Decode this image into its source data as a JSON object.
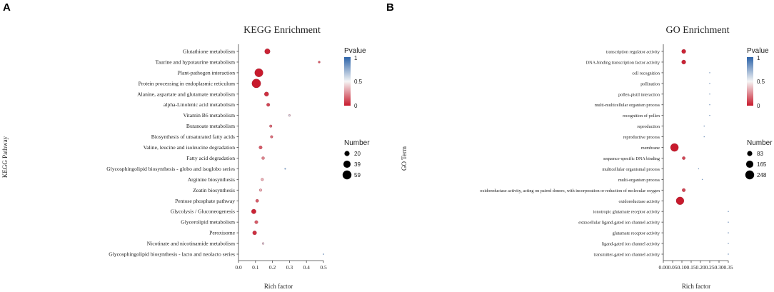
{
  "panels": {
    "A": {
      "letter": "A"
    },
    "B": {
      "letter": "B"
    }
  },
  "colors": {
    "low": "#c81a2d",
    "mid": "#f5f5f5",
    "high": "#2c63a9",
    "dot_stroke": "#8a1020"
  },
  "chart_data": [
    {
      "type": "scatter",
      "title": "KEGG Enrichment",
      "xlabel": "Rich factor",
      "ylabel": "KEGG Pathway",
      "xlim": [
        0,
        0.5
      ],
      "xticks": [
        "0.0",
        "0.1",
        "0.2",
        "0.3",
        "0.4",
        "0.5"
      ],
      "xtick_values": [
        0.0,
        0.1,
        0.2,
        0.3,
        0.4,
        0.5
      ],
      "color_legend": {
        "title": "Pvalue",
        "ticks": [
          "1",
          "0.5",
          "0"
        ],
        "tick_values": [
          1,
          0.5,
          0
        ]
      },
      "size_legend": {
        "title": "Number",
        "labels": [
          "20",
          "39",
          "59"
        ],
        "values": [
          20,
          39,
          59
        ]
      },
      "categories": [
        "Glutathione metabolism",
        "Taurine and hypotaurine metabolism",
        "Plant-pathogen interaction",
        "Protein processing in endoplasmic reticulum",
        "Alanine, aspartate and glutamate metabolism",
        "alpha-Linolenic acid metabolism",
        "Vitamin B6 metabolism",
        "Butanoate metabolism",
        "Biosynthesis of unsaturated fatty acids",
        "Valine, leucine and isoleucine degradation",
        "Fatty acid degradation",
        "Glycosphingolipid biosynthesis - globo and isoglobo series",
        "Arginine biosynthesis",
        "Zeatin biosynthesis",
        "Pentose phosphate pathway",
        "Glycolysis / Gluconeogenesis",
        "Glycerolipid metabolism",
        "Peroxisome",
        "Nicotinate and nicotinamide metabolism",
        "Glycosphingolipid biosynthesis - lacto and neolacto series"
      ],
      "points": [
        {
          "x": 0.17,
          "number": 22,
          "pvalue": 0.02
        },
        {
          "x": 0.475,
          "number": 3,
          "pvalue": 0.15
        },
        {
          "x": 0.12,
          "number": 52,
          "pvalue": 0.0
        },
        {
          "x": 0.105,
          "number": 59,
          "pvalue": 0.0
        },
        {
          "x": 0.165,
          "number": 14,
          "pvalue": 0.05
        },
        {
          "x": 0.175,
          "number": 8,
          "pvalue": 0.1
        },
        {
          "x": 0.3,
          "number": 3,
          "pvalue": 0.6
        },
        {
          "x": 0.19,
          "number": 5,
          "pvalue": 0.2
        },
        {
          "x": 0.195,
          "number": 5,
          "pvalue": 0.2
        },
        {
          "x": 0.13,
          "number": 8,
          "pvalue": 0.15
        },
        {
          "x": 0.145,
          "number": 6,
          "pvalue": 0.25
        },
        {
          "x": 0.275,
          "number": 2,
          "pvalue": 0.8
        },
        {
          "x": 0.14,
          "number": 5,
          "pvalue": 0.35
        },
        {
          "x": 0.13,
          "number": 5,
          "pvalue": 0.35
        },
        {
          "x": 0.11,
          "number": 7,
          "pvalue": 0.15
        },
        {
          "x": 0.09,
          "number": 16,
          "pvalue": 0.02
        },
        {
          "x": 0.105,
          "number": 8,
          "pvalue": 0.15
        },
        {
          "x": 0.095,
          "number": 12,
          "pvalue": 0.05
        },
        {
          "x": 0.145,
          "number": 3,
          "pvalue": 0.6
        },
        {
          "x": 0.5,
          "number": 1,
          "pvalue": 1.0
        }
      ]
    },
    {
      "type": "scatter",
      "title": "GO Enrichment",
      "xlabel": "Rich factor",
      "ylabel": "GO Term",
      "xlim": [
        0,
        0.35
      ],
      "xticks": [
        "0.00",
        "0.05",
        "0.10",
        "0.15",
        "0.20",
        "0.25",
        "0.30",
        "0.35"
      ],
      "xtick_values": [
        0.0,
        0.05,
        0.1,
        0.15,
        0.2,
        0.25,
        0.3,
        0.35
      ],
      "color_legend": {
        "title": "Pvalue",
        "ticks": [
          "1",
          "0.5",
          "0"
        ],
        "tick_values": [
          1,
          0.5,
          0
        ]
      },
      "size_legend": {
        "title": "Number",
        "labels": [
          "83",
          "165",
          "248"
        ],
        "values": [
          83,
          165,
          248
        ]
      },
      "categories": [
        "transcription regulator activity",
        "DNA-binding transcription factor activity",
        "cell recognition",
        "pollination",
        "pollen-pistil interaction",
        "multi-multicellular organism process",
        "recognition of pollen",
        "reproduction",
        "reproductive process",
        "membrane",
        "sequence-specific DNA binding",
        "multicellular organismal process",
        "multi-organism process",
        "oxidoreductase activity, acting on paired donors, with incorporation or reduction of molecular oxygen",
        "oxidoreductase activity",
        "ionotropic glutamate receptor activity",
        "extracellular ligand-gated ion channel activity",
        "glutamate receptor activity",
        "ligand-gated ion channel activity",
        "transmitter-gated ion channel activity"
      ],
      "points": [
        {
          "x": 0.11,
          "number": 55,
          "pvalue": 0.02
        },
        {
          "x": 0.11,
          "number": 55,
          "pvalue": 0.02
        },
        {
          "x": 0.25,
          "number": 3,
          "pvalue": 0.95
        },
        {
          "x": 0.25,
          "number": 3,
          "pvalue": 0.95
        },
        {
          "x": 0.25,
          "number": 3,
          "pvalue": 0.95
        },
        {
          "x": 0.25,
          "number": 3,
          "pvalue": 0.95
        },
        {
          "x": 0.25,
          "number": 3,
          "pvalue": 0.95
        },
        {
          "x": 0.22,
          "number": 3,
          "pvalue": 0.95
        },
        {
          "x": 0.22,
          "number": 3,
          "pvalue": 0.95
        },
        {
          "x": 0.06,
          "number": 200,
          "pvalue": 0.0
        },
        {
          "x": 0.11,
          "number": 30,
          "pvalue": 0.1
        },
        {
          "x": 0.19,
          "number": 3,
          "pvalue": 0.95
        },
        {
          "x": 0.21,
          "number": 3,
          "pvalue": 0.95
        },
        {
          "x": 0.11,
          "number": 35,
          "pvalue": 0.1
        },
        {
          "x": 0.09,
          "number": 190,
          "pvalue": 0.0
        },
        {
          "x": 0.35,
          "number": 1,
          "pvalue": 1.0
        },
        {
          "x": 0.35,
          "number": 1,
          "pvalue": 1.0
        },
        {
          "x": 0.35,
          "number": 1,
          "pvalue": 1.0
        },
        {
          "x": 0.35,
          "number": 1,
          "pvalue": 1.0
        },
        {
          "x": 0.35,
          "number": 1,
          "pvalue": 1.0
        }
      ]
    }
  ]
}
